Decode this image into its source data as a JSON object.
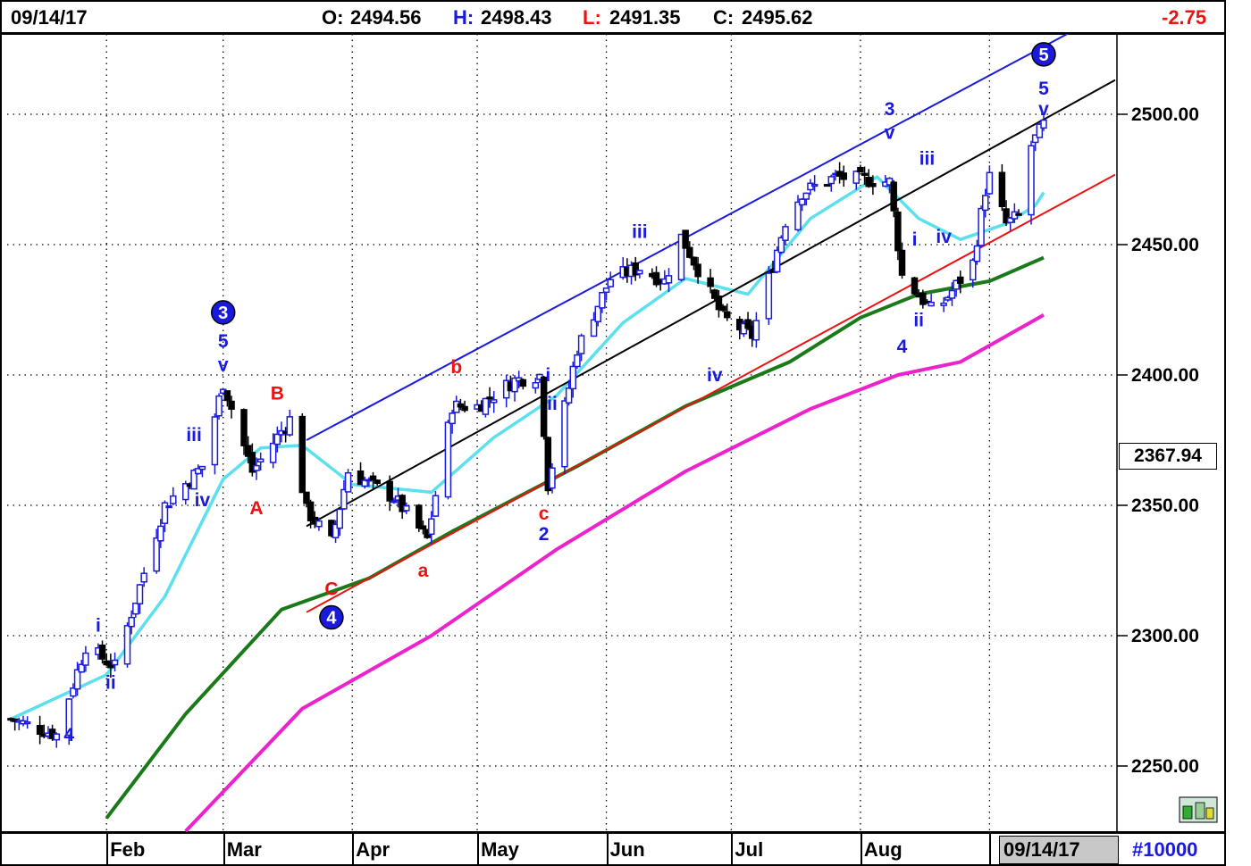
{
  "header": {
    "date": "09/14/17",
    "open_label": "O:",
    "open": "2494.56",
    "high_label": "H:",
    "high": "2498.43",
    "low_label": "L:",
    "low": "2491.35",
    "close_label": "C:",
    "close": "2495.62",
    "change": "-2.75"
  },
  "footer": {
    "months": [
      "Feb",
      "Mar",
      "Apr",
      "May",
      "Jun",
      "Jul",
      "Aug"
    ],
    "date_box": "09/14/17",
    "symbol": "#10000"
  },
  "price_box": "2367.94",
  "colors": {
    "up": "#1a1adc",
    "down": "#000000",
    "cyan": "#5ce0ee",
    "green": "#1a7a1a",
    "magenta": "#ee22cc",
    "red": "#ee1111",
    "blue": "#1a1adc",
    "text_red": "#ee1111"
  },
  "chart_data": {
    "type": "candlestick",
    "ylim": [
      2220,
      2525
    ],
    "yticks": [
      2250,
      2300,
      2350,
      2400,
      2450,
      2500
    ],
    "ytick_labels": [
      "2250.00",
      "2300.00",
      "2350.00",
      "2400.00",
      "2450.00",
      "2500.00"
    ],
    "x_dates": [
      "2017-01-09",
      "2017-09-14"
    ],
    "ohlc_waypoints": [
      [
        "2017-01-09",
        2268
      ],
      [
        "2017-01-20",
        2262
      ],
      [
        "2017-01-27",
        2296
      ],
      [
        "2017-02-03",
        2288
      ],
      [
        "2017-02-15",
        2350
      ],
      [
        "2017-02-24",
        2365
      ],
      [
        "2017-03-01",
        2397
      ],
      [
        "2017-03-08",
        2363
      ],
      [
        "2017-03-17",
        2383
      ],
      [
        "2017-03-21",
        2348
      ],
      [
        "2017-03-27",
        2336
      ],
      [
        "2017-03-31",
        2363
      ],
      [
        "2017-04-11",
        2353
      ],
      [
        "2017-04-19",
        2337
      ],
      [
        "2017-04-25",
        2388
      ],
      [
        "2017-05-01",
        2388
      ],
      [
        "2017-05-10",
        2398
      ],
      [
        "2017-05-16",
        2400
      ],
      [
        "2017-05-18",
        2358
      ],
      [
        "2017-05-25",
        2410
      ],
      [
        "2017-06-02",
        2437
      ],
      [
        "2017-06-09",
        2441
      ],
      [
        "2017-06-15",
        2436
      ],
      [
        "2017-06-19",
        2453
      ],
      [
        "2017-06-29",
        2422
      ],
      [
        "2017-07-06",
        2415
      ],
      [
        "2017-07-14",
        2459
      ],
      [
        "2017-07-18",
        2470
      ],
      [
        "2017-07-26",
        2476
      ],
      [
        "2017-08-08",
        2474
      ],
      [
        "2017-08-11",
        2438
      ],
      [
        "2017-08-18",
        2425
      ],
      [
        "2017-08-21",
        2428
      ],
      [
        "2017-08-28",
        2443
      ],
      [
        "2017-08-31",
        2471
      ],
      [
        "2017-09-01",
        2476
      ],
      [
        "2017-09-05",
        2458
      ],
      [
        "2017-09-08",
        2461
      ],
      [
        "2017-09-11",
        2488
      ],
      [
        "2017-09-14",
        2496
      ]
    ],
    "lines": {
      "cyan_ma": [
        [
          "2017-01-09",
          2268
        ],
        [
          "2017-02-01",
          2285
        ],
        [
          "2017-02-15",
          2315
        ],
        [
          "2017-03-01",
          2360
        ],
        [
          "2017-03-10",
          2372
        ],
        [
          "2017-03-20",
          2373
        ],
        [
          "2017-04-01",
          2358
        ],
        [
          "2017-04-20",
          2355
        ],
        [
          "2017-05-05",
          2376
        ],
        [
          "2017-05-20",
          2392
        ],
        [
          "2017-06-05",
          2420
        ],
        [
          "2017-06-20",
          2437
        ],
        [
          "2017-07-05",
          2431
        ],
        [
          "2017-07-20",
          2460
        ],
        [
          "2017-08-05",
          2476
        ],
        [
          "2017-08-15",
          2460
        ],
        [
          "2017-08-25",
          2452
        ],
        [
          "2017-09-05",
          2458
        ],
        [
          "2017-09-12",
          2465
        ],
        [
          "2017-09-14",
          2470
        ]
      ],
      "green_ma": [
        [
          "2017-02-01",
          2230
        ],
        [
          "2017-02-20",
          2270
        ],
        [
          "2017-03-15",
          2310
        ],
        [
          "2017-04-05",
          2322
        ],
        [
          "2017-04-25",
          2340
        ],
        [
          "2017-05-25",
          2365
        ],
        [
          "2017-06-20",
          2388
        ],
        [
          "2017-07-15",
          2405
        ],
        [
          "2017-08-01",
          2422
        ],
        [
          "2017-08-15",
          2431
        ],
        [
          "2017-09-01",
          2436
        ],
        [
          "2017-09-14",
          2445
        ]
      ],
      "magenta_ma": [
        [
          "2017-02-20",
          2225
        ],
        [
          "2017-03-20",
          2272
        ],
        [
          "2017-04-20",
          2300
        ],
        [
          "2017-05-20",
          2333
        ],
        [
          "2017-06-20",
          2363
        ],
        [
          "2017-07-20",
          2387
        ],
        [
          "2017-08-10",
          2400
        ],
        [
          "2017-08-25",
          2405
        ],
        [
          "2017-09-14",
          2423
        ]
      ]
    },
    "trendlines": {
      "blue_channel": [
        [
          "2017-03-21",
          2375
        ],
        [
          "2017-09-14",
          2526
        ]
      ],
      "black_mid": [
        [
          "2017-03-21",
          2342
        ],
        [
          "2017-09-14",
          2498
        ]
      ],
      "red_base": [
        [
          "2017-03-21",
          2309
        ],
        [
          "2017-09-14",
          2462
        ]
      ]
    },
    "wave_labels": [
      {
        "text": "4",
        "date": "2017-01-23",
        "price": 2262,
        "color": "blue"
      },
      {
        "text": "i",
        "date": "2017-01-30",
        "price": 2304,
        "color": "blue"
      },
      {
        "text": "ii",
        "date": "2017-02-02",
        "price": 2282,
        "color": "blue"
      },
      {
        "text": "iii",
        "date": "2017-02-22",
        "price": 2377,
        "color": "blue"
      },
      {
        "text": "iv",
        "date": "2017-02-24",
        "price": 2352,
        "color": "blue"
      },
      {
        "text": "v",
        "date": "2017-03-01",
        "price": 2404,
        "color": "blue"
      },
      {
        "text": "5",
        "date": "2017-03-01",
        "price": 2413,
        "color": "blue"
      },
      {
        "text": "3",
        "date": "2017-03-01",
        "price": 2424,
        "color": "blue",
        "circle": true
      },
      {
        "text": "A",
        "date": "2017-03-09",
        "price": 2349,
        "color": "red"
      },
      {
        "text": "B",
        "date": "2017-03-14",
        "price": 2393,
        "color": "red"
      },
      {
        "text": "C",
        "date": "2017-03-27",
        "price": 2318,
        "color": "red"
      },
      {
        "text": "4",
        "date": "2017-03-27",
        "price": 2307,
        "color": "blue",
        "circle": true
      },
      {
        "text": "a",
        "date": "2017-04-18",
        "price": 2325,
        "color": "red"
      },
      {
        "text": "b",
        "date": "2017-04-26",
        "price": 2403,
        "color": "red"
      },
      {
        "text": "c",
        "date": "2017-05-17",
        "price": 2347,
        "color": "red"
      },
      {
        "text": "2",
        "date": "2017-05-17",
        "price": 2339,
        "color": "blue"
      },
      {
        "text": "i",
        "date": "2017-05-18",
        "price": 2400,
        "color": "blue"
      },
      {
        "text": "ii",
        "date": "2017-05-19",
        "price": 2389,
        "color": "blue"
      },
      {
        "text": "iii",
        "date": "2017-06-09",
        "price": 2455,
        "color": "blue"
      },
      {
        "text": "iv",
        "date": "2017-06-27",
        "price": 2400,
        "color": "blue"
      },
      {
        "text": "3",
        "date": "2017-08-08",
        "price": 2502,
        "color": "blue"
      },
      {
        "text": "v",
        "date": "2017-08-08",
        "price": 2493,
        "color": "blue"
      },
      {
        "text": "4",
        "date": "2017-08-11",
        "price": 2411,
        "color": "blue"
      },
      {
        "text": "i",
        "date": "2017-08-14",
        "price": 2452,
        "color": "blue"
      },
      {
        "text": "ii",
        "date": "2017-08-15",
        "price": 2421,
        "color": "blue"
      },
      {
        "text": "iii",
        "date": "2017-08-17",
        "price": 2483,
        "color": "blue"
      },
      {
        "text": "iv",
        "date": "2017-08-21",
        "price": 2453,
        "color": "blue"
      },
      {
        "text": "5",
        "date": "2017-09-14",
        "price": 2523,
        "color": "blue",
        "circle": true
      },
      {
        "text": "5",
        "date": "2017-09-14",
        "price": 2510,
        "color": "blue"
      },
      {
        "text": "v",
        "date": "2017-09-14",
        "price": 2502,
        "color": "blue"
      }
    ]
  }
}
